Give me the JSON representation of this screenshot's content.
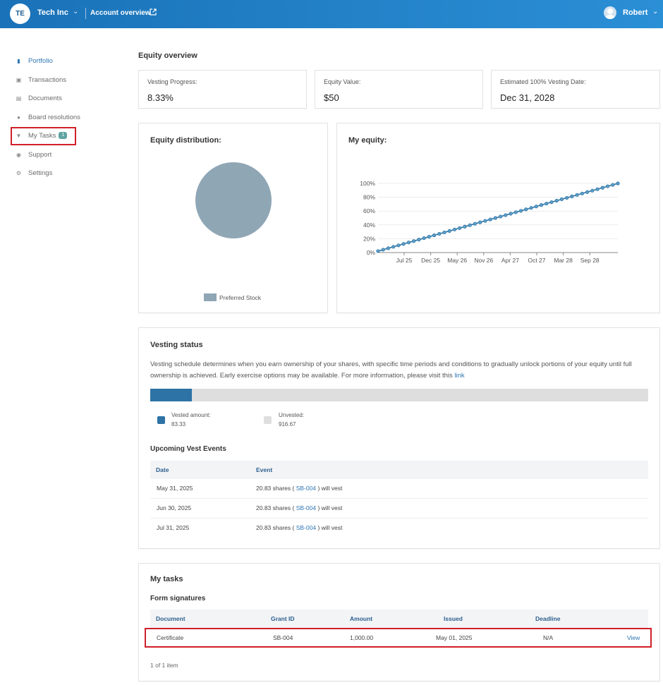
{
  "header": {
    "logo_initials": "TE",
    "company": "Tech Inc",
    "account_overview": "Account overview",
    "user": "Robert"
  },
  "sidebar": {
    "items": [
      {
        "label": "Portfolio",
        "icon": "chart-bars-icon",
        "active": true
      },
      {
        "label": "Transactions",
        "icon": "clipboard-icon"
      },
      {
        "label": "Documents",
        "icon": "document-icon"
      },
      {
        "label": "Board resolutions",
        "icon": "people-icon"
      },
      {
        "label": "My Tasks",
        "icon": "inbox-icon",
        "badge": "1"
      },
      {
        "label": "Support",
        "icon": "support-icon"
      },
      {
        "label": "Settings",
        "icon": "gear-icon"
      }
    ]
  },
  "main": {
    "title": "Equity overview",
    "stats": [
      {
        "label": "Vesting Progress:",
        "value": "8.33%"
      },
      {
        "label": "Equity Value:",
        "value": "$50"
      },
      {
        "label": "Estimated 100% Vesting Date:",
        "value": "Dec 31, 2028"
      }
    ],
    "distribution": {
      "title": "Equity distribution:",
      "legend": "Preferred Stock",
      "color": "#8fa6b5"
    },
    "my_equity": {
      "title": "My equity:"
    },
    "vesting": {
      "title": "Vesting status",
      "description": "Vesting schedule determines when you earn ownership of your shares, with specific time periods and conditions to gradually unlock portions of your equity until full ownership is achieved. Early exercise options may be available. For more information, please visit this",
      "link_text": "link",
      "progress_fraction": 0.0833,
      "vested_label": "Vested amount:",
      "vested_value": "83.33",
      "vested_color": "#2d73a5",
      "unvested_label": "Unvested:",
      "unvested_value": "916.67",
      "unvested_color": "#dedede",
      "upcoming_title": "Upcoming Vest Events",
      "columns": [
        "Date",
        "Event"
      ],
      "events": [
        {
          "date": "May 31, 2025",
          "pre": "20.83 shares (",
          "grant": "SB-004",
          "post": ") will vest"
        },
        {
          "date": "Jun 30, 2025",
          "pre": "20.83 shares (",
          "grant": "SB-004",
          "post": ") will vest"
        },
        {
          "date": "Jul 31, 2025",
          "pre": "20.83 shares (",
          "grant": "SB-004",
          "post": ") will vest"
        }
      ]
    },
    "tasks": {
      "title": "My tasks",
      "subtitle": "Form signatures",
      "columns": [
        "Document",
        "Grant ID",
        "Amount",
        "Issued",
        "Deadline"
      ],
      "rows": [
        {
          "document": "Certificate",
          "grant_id": "SB-004",
          "amount": "1,000.00",
          "issued": "May 01, 2025",
          "deadline": "N/A",
          "action": "View"
        }
      ],
      "footer": "1 of 1 item"
    }
  },
  "chart_data": [
    {
      "type": "pie",
      "categories": [
        "Preferred Stock"
      ],
      "values": [
        100
      ]
    },
    {
      "type": "line",
      "title": "My equity:",
      "y_tick_labels": [
        "0%",
        "20%",
        "40%",
        "60%",
        "80%",
        "100%"
      ],
      "x_tick_labels": [
        "Jul 25",
        "Dec 25",
        "May 26",
        "Nov 26",
        "Apr 27",
        "Oct 27",
        "Mar 28",
        "Sep 28"
      ],
      "ylim": [
        0,
        100
      ],
      "grid": true,
      "points_count": 48,
      "series": [
        {
          "start": [
            "Jan 25",
            2.08
          ],
          "end": [
            "Dec 28",
            100
          ],
          "color": "#2d73a5"
        }
      ]
    }
  ]
}
